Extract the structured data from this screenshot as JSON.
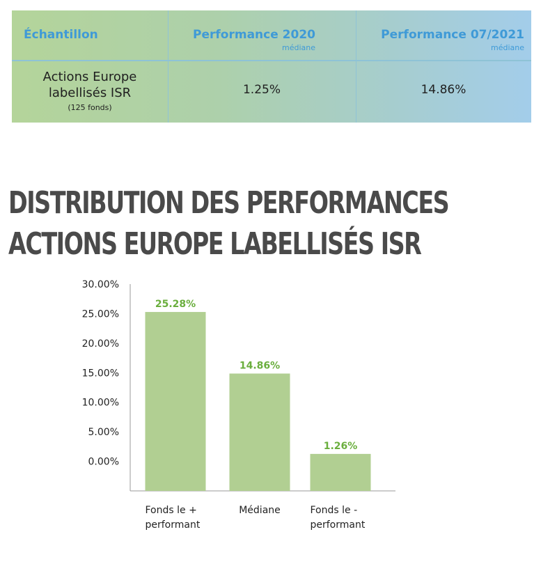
{
  "table": {
    "col1_header": "Échantillon",
    "col2_header": "Performance 2020",
    "col2_sub": "médiane",
    "col3_header": "Performance 07/2021",
    "col3_sub": "médiane",
    "row_label_line1": "Actions Europe",
    "row_label_line2": "labellisés ISR",
    "row_label_note": "(125 fonds)",
    "perf_2020": "1.25%",
    "perf_07_2021": "14.86%"
  },
  "heading": {
    "line1": "DISTRIBUTION DES PERFORMANCES",
    "line2": "ACTIONS EUROPE LABELLISÉS ISR"
  },
  "colors": {
    "bar": "#b1cf92",
    "value_label": "#6aae3d",
    "header_blue": "#3f9ad7"
  },
  "chart_data": {
    "type": "bar",
    "categories": [
      [
        "Fonds le +",
        "performant"
      ],
      [
        "Médiane"
      ],
      [
        "Fonds le -",
        "performant"
      ]
    ],
    "values": [
      25.28,
      14.86,
      1.26
    ],
    "data_labels": [
      "25.28%",
      "14.86%",
      "1.26%"
    ],
    "y_ticks": [
      "30.00%",
      "25.00%",
      "20.00%",
      "15.00%",
      "10.00%",
      "5.00%",
      "0.00%"
    ],
    "y_tick_values": [
      30,
      25,
      20,
      15,
      10,
      5,
      0
    ],
    "ylim": [
      -5,
      30
    ],
    "grid": false,
    "title": "",
    "xlabel": "",
    "ylabel": ""
  }
}
